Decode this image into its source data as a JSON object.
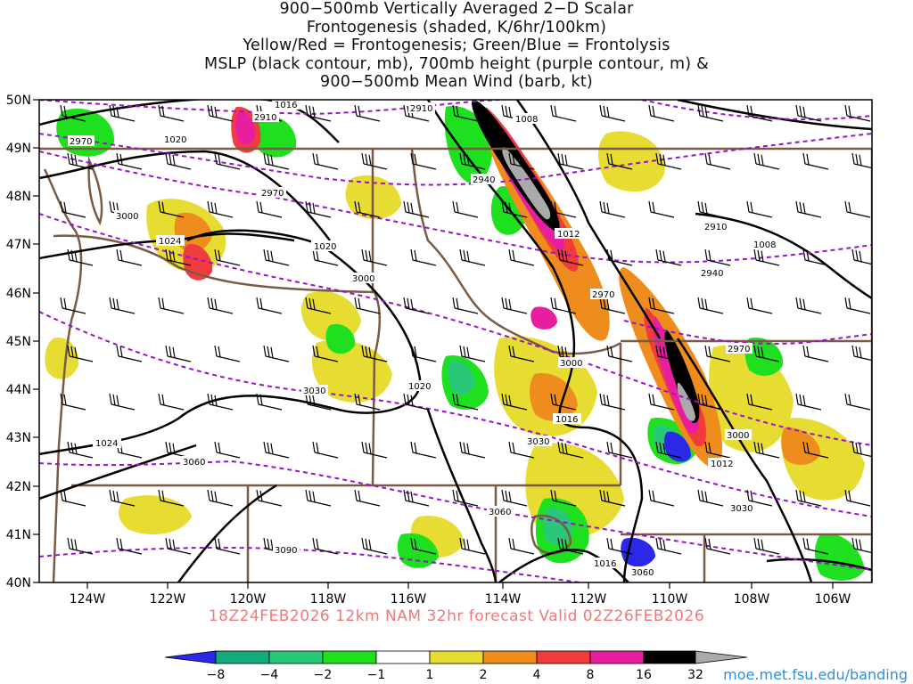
{
  "title_lines": [
    "900−500mb Vertically Averaged 2−D Scalar",
    "Frontogenesis (shaded, K/6hr/100km)",
    "Yellow/Red = Frontogenesis;  Green/Blue = Frontolysis",
    "MSLP (black contour, mb), 700mb height (purple contour, m) &",
    "900−500mb Mean Wind (barb, kt)"
  ],
  "forecast_label": "18Z24FEB2026 12km NAM 32hr forecast Valid 02Z26FEB2026",
  "credit": "moe.met.fsu.edu/banding",
  "map": {
    "lon_range": [
      -125,
      -105
    ],
    "lat_range": [
      40,
      50
    ],
    "lon_ticks": [
      "124W",
      "122W",
      "120W",
      "118W",
      "116W",
      "114W",
      "112W",
      "110W",
      "108W",
      "106W"
    ],
    "lat_ticks": [
      "50N",
      "49N",
      "48N",
      "47N",
      "46N",
      "45N",
      "44N",
      "43N",
      "42N",
      "41N",
      "40N"
    ],
    "mslp_labels": [
      "1016",
      "1020",
      "1024",
      "1020",
      "1008",
      "1012",
      "1020",
      "1016",
      "1024",
      "1008",
      "1012",
      "1016"
    ],
    "height_labels": [
      "2910",
      "2970",
      "2910",
      "2940",
      "2970",
      "3000",
      "3000",
      "2970",
      "2910",
      "2940",
      "2970",
      "3030",
      "3000",
      "3030",
      "3000",
      "3060",
      "3060",
      "3030",
      "3090",
      "3060"
    ],
    "colors": {
      "border": "#7a5a44",
      "mslp": "#000000",
      "height": "#9a12c9"
    }
  },
  "colorbar": {
    "labels": [
      "−8",
      "−4",
      "−2",
      "−1",
      "1",
      "2",
      "4",
      "8",
      "16",
      "32"
    ],
    "colors": [
      "#2b28ea",
      "#14aa7e",
      "#28c878",
      "#1ee01e",
      "#ffffff",
      "#e6dc32",
      "#ee8c1e",
      "#f03c3c",
      "#e81ea0",
      "#000000",
      "#aaaaaa"
    ]
  }
}
